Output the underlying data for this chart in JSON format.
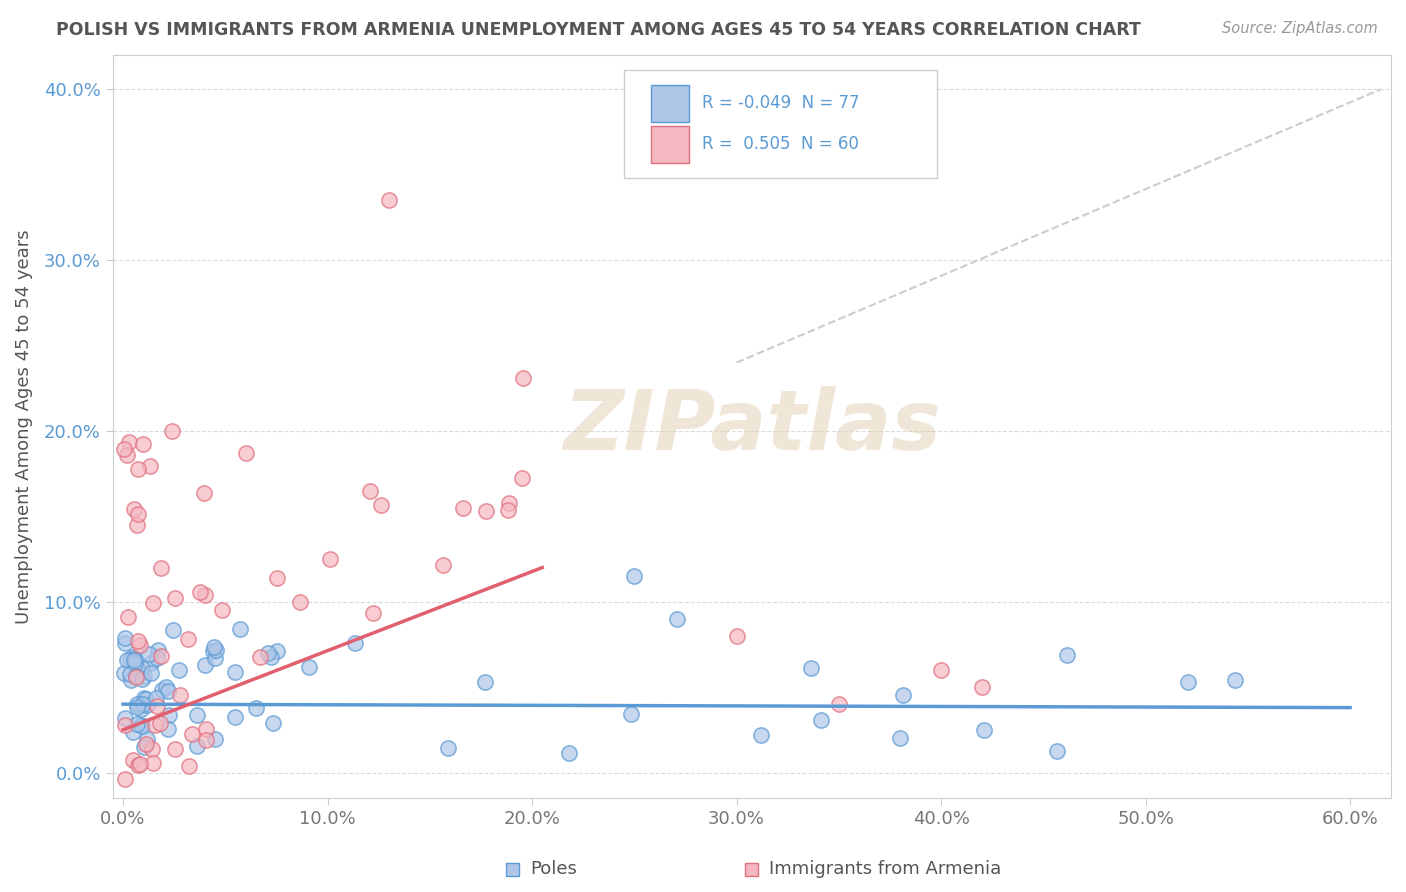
{
  "title": "POLISH VS IMMIGRANTS FROM ARMENIA UNEMPLOYMENT AMONG AGES 45 TO 54 YEARS CORRELATION CHART",
  "source": "Source: ZipAtlas.com",
  "xlim": [
    -0.005,
    0.62
  ],
  "ylim": [
    -0.015,
    0.42
  ],
  "xtick_vals": [
    0.0,
    0.1,
    0.2,
    0.3,
    0.4,
    0.5,
    0.6
  ],
  "ytick_vals": [
    0.0,
    0.1,
    0.2,
    0.3,
    0.4
  ],
  "ylabel": "Unemployment Among Ages 45 to 54 years",
  "watermark": "ZIPatlas",
  "blue_face": "#aec6e8",
  "blue_edge": "#5b9bd5",
  "pink_face": "#f4b8c1",
  "pink_edge": "#e07080",
  "trend_blue": "#5b9bd5",
  "trend_pink": "#e06070",
  "dashed_line": "#cccccc",
  "grid_color": "#cccccc",
  "title_color": "#555555",
  "axis_label_color": "#555555",
  "tick_color_y": "#5b9bd5",
  "tick_color_x": "#777777",
  "R_poles": -0.049,
  "N_poles": 77,
  "R_armenia": 0.505,
  "N_armenia": 60,
  "bottom_label1": "Poles",
  "bottom_label2": "Immigrants from Armenia",
  "background": "#ffffff"
}
